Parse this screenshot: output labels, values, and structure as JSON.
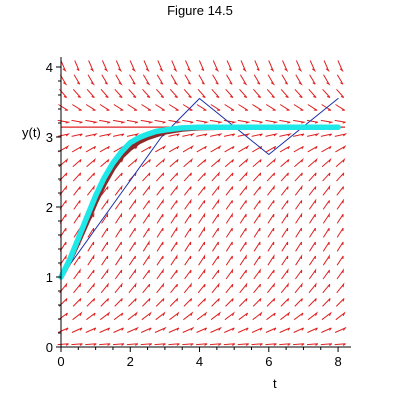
{
  "chart_data": {
    "type": "line",
    "title": "Figure 14.5",
    "xlabel": "t",
    "ylabel": "y(t)",
    "xlim": [
      0,
      8.2
    ],
    "ylim": [
      0,
      4.1
    ],
    "x_ticks": [
      "0",
      "2",
      "4",
      "6",
      "8"
    ],
    "y_ticks": [
      "0",
      "1",
      "2",
      "3",
      "4"
    ],
    "direction_field": {
      "equation_note": "slope field of logistic-type ODE with equilibria at y = 0 and y = 3.14159",
      "rate": 1,
      "capacity": 3.14159,
      "color": "#e02020"
    },
    "equilibrium": {
      "y": 3.14159,
      "color": "#e02020"
    },
    "series": [
      {
        "style": "thin-zigzag",
        "color": "#1c2fa8",
        "x": [
          0,
          2.9,
          4.0,
          6.0,
          8.0
        ],
        "y": [
          1.0,
          3.0,
          3.55,
          2.75,
          3.55
        ]
      },
      {
        "style": "exact-solution",
        "color": "#8a2a2a",
        "x": [
          0,
          0.25,
          0.5,
          0.75,
          1.0,
          1.25,
          1.5,
          1.75,
          2.0,
          2.25,
          2.5,
          2.75,
          3.0,
          3.5,
          4.0,
          5.0,
          6.0,
          7.0,
          8.0
        ],
        "y": [
          1.0,
          1.23,
          1.5,
          1.78,
          2.07,
          2.33,
          2.55,
          2.72,
          2.84,
          2.93,
          2.99,
          3.03,
          3.07,
          3.11,
          3.13,
          3.14,
          3.14,
          3.14,
          3.14
        ]
      },
      {
        "style": "thick-approx",
        "color": "#1ee8e8",
        "x": [
          0,
          0.25,
          0.5,
          0.75,
          1.0,
          1.25,
          1.5,
          1.75,
          2.0,
          2.25,
          2.5,
          2.75,
          3.0,
          3.5,
          4.0,
          5.0,
          6.0,
          7.0,
          8.0
        ],
        "y": [
          1.0,
          1.25,
          1.55,
          1.86,
          2.16,
          2.42,
          2.63,
          2.79,
          2.92,
          2.99,
          3.04,
          3.08,
          3.1,
          3.13,
          3.14,
          3.14,
          3.14,
          3.14,
          3.14
        ]
      }
    ]
  }
}
